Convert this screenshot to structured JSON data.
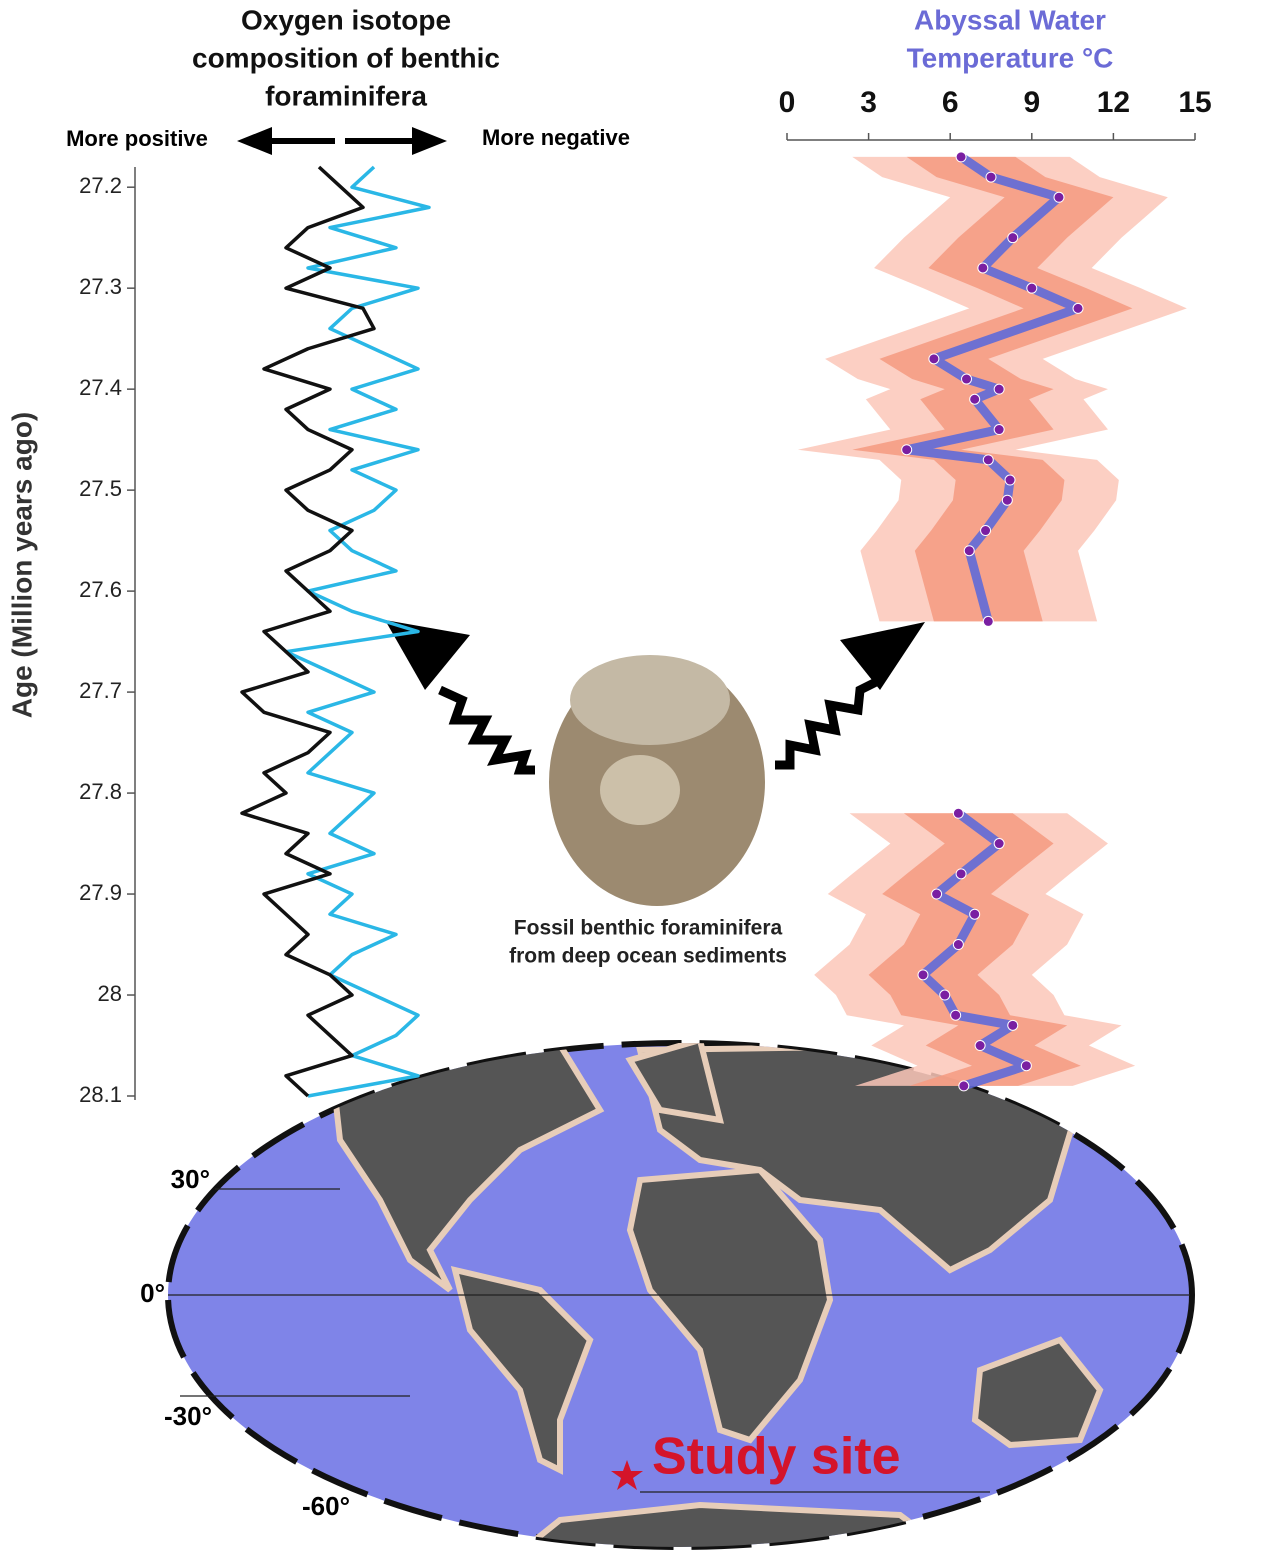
{
  "chart_data": [
    {
      "type": "line",
      "orientation": "vertical",
      "title": [
        "Oxygen isotope",
        "composition of benthic",
        "foraminifera"
      ],
      "y_label": "Age (Million years ago)",
      "annotations": [
        "More positive",
        "More negative"
      ],
      "ylim": [
        27.18,
        28.1
      ],
      "yticks": [
        27.2,
        27.3,
        27.4,
        27.5,
        27.6,
        27.7,
        27.8,
        27.9,
        28,
        28.1
      ],
      "xlim": [
        0,
        10
      ],
      "x": [
        27.18,
        27.2,
        27.22,
        27.24,
        27.26,
        27.28,
        27.3,
        27.32,
        27.34,
        27.36,
        27.38,
        27.4,
        27.42,
        27.44,
        27.46,
        27.48,
        27.5,
        27.52,
        27.54,
        27.56,
        27.58,
        27.6,
        27.62,
        27.64,
        27.66,
        27.68,
        27.7,
        27.72,
        27.74,
        27.76,
        27.78,
        27.8,
        27.82,
        27.84,
        27.86,
        27.88,
        27.9,
        27.92,
        27.94,
        27.96,
        27.98,
        28,
        28.02,
        28.04,
        28.06,
        28.08,
        28.1
      ],
      "series": [
        {
          "color": "#2ab7e6",
          "values": [
            7,
            6,
            9.5,
            5,
            8,
            4,
            9,
            6,
            5,
            7,
            9,
            6,
            8,
            5,
            9,
            6,
            8,
            7,
            5,
            6,
            8,
            4,
            6,
            9,
            3,
            5,
            7,
            4,
            6,
            5,
            4,
            7,
            6,
            5,
            7,
            4,
            6,
            5,
            8,
            6,
            5,
            7,
            9,
            8,
            6,
            9,
            4
          ]
        },
        {
          "color": "#111111",
          "values": [
            4.5,
            5.5,
            6.5,
            4,
            3,
            5,
            3,
            6.5,
            7,
            4,
            2,
            5,
            3,
            4,
            6,
            5,
            3,
            4,
            6,
            5,
            3,
            4,
            5,
            2,
            3,
            4,
            1,
            2,
            5,
            4,
            2,
            3,
            1,
            4,
            3,
            5,
            2,
            3,
            4,
            3,
            5,
            6,
            4,
            5,
            6,
            3,
            4
          ]
        }
      ]
    },
    {
      "type": "line",
      "orientation": "vertical",
      "title": [
        "Abyssal Water",
        "Temperature °C"
      ],
      "title_color": "#6b6bd6",
      "xlim": [
        0,
        15
      ],
      "xticks": [
        0,
        3,
        6,
        9,
        12,
        15
      ],
      "x": [
        27.17,
        27.19,
        27.21,
        27.25,
        27.28,
        27.3,
        27.32,
        27.37,
        27.39,
        27.4,
        27.41,
        27.44,
        27.46,
        27.47,
        27.49,
        27.51,
        27.54,
        27.56,
        27.63,
        27.72,
        27.82,
        27.85,
        27.88,
        27.9,
        27.92,
        27.95,
        27.98,
        28,
        28.02,
        28.03,
        28.05,
        28.07,
        28.09
      ],
      "series": [
        {
          "color": "#5f6ad8",
          "point_color": "#7a1fa2",
          "values": [
            6.4,
            7.5,
            10,
            8.3,
            7.2,
            9,
            10.7,
            5.4,
            6.6,
            7.8,
            6.9,
            7.8,
            4.4,
            7.4,
            8.2,
            8.1,
            7.3,
            6.7,
            7.4,
            null,
            6.3,
            7.8,
            6.4,
            5.5,
            6.9,
            6.3,
            5,
            5.8,
            6.2,
            8.3,
            7.1,
            8.8,
            6.5
          ]
        }
      ],
      "error_bands": [
        2,
        4
      ],
      "band_colors": [
        "#f59a80",
        "#fbc7b8"
      ]
    }
  ],
  "photo": {
    "caption": [
      "Fossil benthic foraminifera",
      "from deep ocean sediments"
    ]
  },
  "map": {
    "latitude_labels": [
      "30°",
      "0°",
      "-30°",
      "-60°"
    ],
    "site_label": "Study site"
  }
}
